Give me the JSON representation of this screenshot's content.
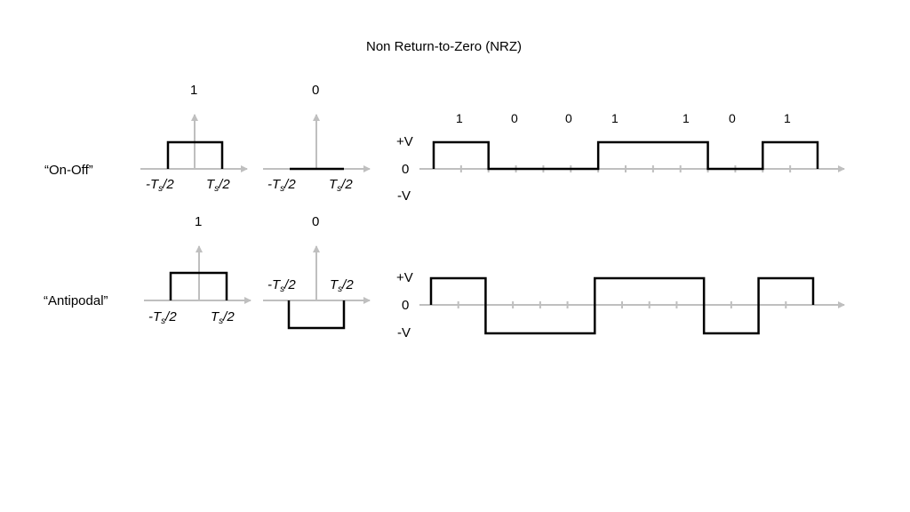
{
  "title": "Non Return-to-Zero (NRZ)",
  "rows": {
    "onoff": {
      "label": "“On-Off”",
      "pulse_one_bit": "1",
      "pulse_zero_bit": "0"
    },
    "antipodal": {
      "label": "“Antipodal”",
      "pulse_one_bit": "1",
      "pulse_zero_bit": "0"
    }
  },
  "pulse_axis": {
    "neg_prefix": "-",
    "symbol": "T",
    "subscript": "s",
    "suffix": "/2"
  },
  "levels": {
    "plus": "+V",
    "zero": "0",
    "minus": "-V"
  },
  "bit_sequence": [
    "1",
    "0",
    "0",
    "1",
    "1",
    "0",
    "1"
  ],
  "colors": {
    "signal": "#000000",
    "axis": "#bfbfbf"
  }
}
